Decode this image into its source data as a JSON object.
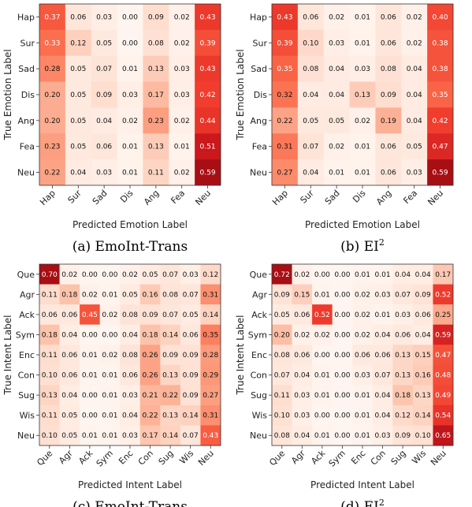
{
  "chart_data": [
    {
      "type": "heatmap",
      "caption": "(a) EmoInt-Trans",
      "xlabel": "Predicted Emotion Label",
      "ylabel": "True Emotion Label",
      "rows": [
        "Hap",
        "Sur",
        "Sad",
        "Dis",
        "Ang",
        "Fea",
        "Neu"
      ],
      "cols": [
        "Hap",
        "Sur",
        "Sad",
        "Dis",
        "Ang",
        "Fea",
        "Neu"
      ],
      "values": [
        [
          0.37,
          0.06,
          0.03,
          0.0,
          0.09,
          0.02,
          0.43
        ],
        [
          0.33,
          0.12,
          0.05,
          0.0,
          0.08,
          0.02,
          0.39
        ],
        [
          0.28,
          0.05,
          0.07,
          0.01,
          0.13,
          0.03,
          0.43
        ],
        [
          0.2,
          0.05,
          0.09,
          0.03,
          0.17,
          0.03,
          0.42
        ],
        [
          0.2,
          0.05,
          0.04,
          0.02,
          0.23,
          0.02,
          0.44
        ],
        [
          0.23,
          0.05,
          0.06,
          0.01,
          0.13,
          0.01,
          0.51
        ],
        [
          0.22,
          0.04,
          0.03,
          0.01,
          0.11,
          0.02,
          0.59
        ]
      ]
    },
    {
      "type": "heatmap",
      "caption": "(b) EI",
      "caption_sup": "2",
      "xlabel": "Predicted Emotion Label",
      "ylabel": "True Emotion Label",
      "rows": [
        "Hap",
        "Sur",
        "Sad",
        "Dis",
        "Ang",
        "Fea",
        "Neu"
      ],
      "cols": [
        "Hap",
        "Sur",
        "Sad",
        "Dis",
        "Ang",
        "Fea",
        "Neu"
      ],
      "values": [
        [
          0.43,
          0.06,
          0.02,
          0.01,
          0.06,
          0.02,
          0.4
        ],
        [
          0.39,
          0.1,
          0.03,
          0.01,
          0.06,
          0.02,
          0.38
        ],
        [
          0.35,
          0.08,
          0.04,
          0.03,
          0.08,
          0.04,
          0.38
        ],
        [
          0.32,
          0.04,
          0.04,
          0.13,
          0.09,
          0.04,
          0.35
        ],
        [
          0.22,
          0.05,
          0.05,
          0.02,
          0.19,
          0.04,
          0.42
        ],
        [
          0.31,
          0.07,
          0.02,
          0.01,
          0.06,
          0.05,
          0.47
        ],
        [
          0.27,
          0.04,
          0.01,
          0.01,
          0.06,
          0.03,
          0.59
        ]
      ]
    },
    {
      "type": "heatmap",
      "caption": "(c) EmoInt-Trans",
      "xlabel": "Predicted Intent Label",
      "ylabel": "True Intent Label",
      "rows": [
        "Que",
        "Agr",
        "Ack",
        "Sym",
        "Enc",
        "Con",
        "Sug",
        "Wis",
        "Neu"
      ],
      "cols": [
        "Que",
        "Agr",
        "Ack",
        "Sym",
        "Enc",
        "Con",
        "Sug",
        "Wis",
        "Neu"
      ],
      "values": [
        [
          0.7,
          0.02,
          0.0,
          0.0,
          0.02,
          0.05,
          0.07,
          0.03,
          0.12
        ],
        [
          0.11,
          0.18,
          0.02,
          0.01,
          0.05,
          0.16,
          0.08,
          0.07,
          0.31
        ],
        [
          0.06,
          0.06,
          0.45,
          0.02,
          0.08,
          0.09,
          0.07,
          0.05,
          0.14
        ],
        [
          0.18,
          0.04,
          0.0,
          0.0,
          0.04,
          0.18,
          0.14,
          0.06,
          0.35
        ],
        [
          0.11,
          0.06,
          0.01,
          0.02,
          0.08,
          0.26,
          0.09,
          0.09,
          0.28
        ],
        [
          0.1,
          0.06,
          0.01,
          0.01,
          0.06,
          0.26,
          0.13,
          0.09,
          0.29
        ],
        [
          0.13,
          0.04,
          0.0,
          0.01,
          0.03,
          0.21,
          0.22,
          0.09,
          0.27
        ],
        [
          0.11,
          0.05,
          0.0,
          0.01,
          0.04,
          0.22,
          0.13,
          0.14,
          0.31
        ],
        [
          0.1,
          0.05,
          0.01,
          0.01,
          0.03,
          0.17,
          0.14,
          0.07,
          0.43
        ]
      ]
    },
    {
      "type": "heatmap",
      "caption": "(d) EI",
      "caption_sup": "2",
      "xlabel": "Predicted Intent Label",
      "ylabel": "True Intent Label",
      "rows": [
        "Que",
        "Agr",
        "Ack",
        "Sym",
        "Enc",
        "Con",
        "Sug",
        "Wis",
        "Neu"
      ],
      "cols": [
        "Que",
        "Agr",
        "Ack",
        "Sym",
        "Enc",
        "Con",
        "Sug",
        "Wis",
        "Neu"
      ],
      "values": [
        [
          0.72,
          0.02,
          0.0,
          0.0,
          0.01,
          0.01,
          0.04,
          0.04,
          0.17
        ],
        [
          0.09,
          0.15,
          0.01,
          0.0,
          0.02,
          0.03,
          0.07,
          0.09,
          0.52
        ],
        [
          0.05,
          0.06,
          0.52,
          0.0,
          0.02,
          0.01,
          0.03,
          0.06,
          0.25
        ],
        [
          0.2,
          0.02,
          0.02,
          0.0,
          0.02,
          0.04,
          0.06,
          0.04,
          0.59
        ],
        [
          0.08,
          0.06,
          0.0,
          0.0,
          0.06,
          0.06,
          0.13,
          0.15,
          0.47
        ],
        [
          0.07,
          0.04,
          0.01,
          0.0,
          0.03,
          0.07,
          0.13,
          0.16,
          0.48
        ],
        [
          0.11,
          0.03,
          0.01,
          0.0,
          0.01,
          0.04,
          0.18,
          0.13,
          0.49
        ],
        [
          0.1,
          0.03,
          0.0,
          0.0,
          0.01,
          0.04,
          0.12,
          0.14,
          0.54
        ],
        [
          0.08,
          0.04,
          0.01,
          0.0,
          0.01,
          0.03,
          0.09,
          0.1,
          0.65
        ]
      ]
    }
  ]
}
